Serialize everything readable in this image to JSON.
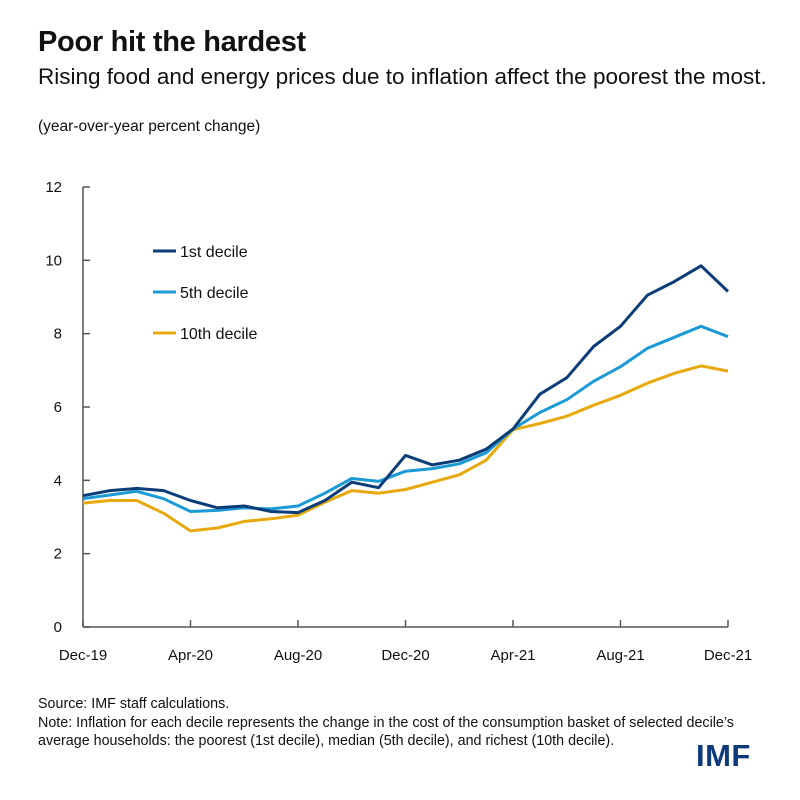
{
  "header": {
    "title": "Poor hit the hardest",
    "subtitle": "Rising food and energy prices due to inflation affect the poorest the most.",
    "unit": "(year-over-year percent change)"
  },
  "chart_data": {
    "type": "line",
    "title": "Poor hit the hardest",
    "ylabel": "(year-over-year percent change)",
    "ylim": [
      0,
      12
    ],
    "yticks": [
      "0",
      "2",
      "4",
      "6",
      "8",
      "10",
      "12"
    ],
    "x": [
      "Dec-19",
      "Jan-20",
      "Feb-20",
      "Mar-20",
      "Apr-20",
      "May-20",
      "Jun-20",
      "Jul-20",
      "Aug-20",
      "Sep-20",
      "Oct-20",
      "Nov-20",
      "Dec-20",
      "Jan-21",
      "Feb-21",
      "Mar-21",
      "Apr-21",
      "May-21",
      "Jun-21",
      "Jul-21",
      "Aug-21",
      "Sep-21",
      "Oct-21",
      "Nov-21",
      "Dec-21"
    ],
    "xticks": [
      "Dec-19",
      "Apr-20",
      "Aug-20",
      "Dec-20",
      "Apr-21",
      "Aug-21",
      "Dec-21"
    ],
    "grid": false,
    "legend_position": "top-left",
    "series": [
      {
        "name": "1st decile",
        "color": "#0b3d78",
        "values": [
          3.58,
          3.72,
          3.78,
          3.72,
          3.45,
          3.25,
          3.3,
          3.15,
          3.12,
          3.45,
          3.95,
          3.8,
          4.68,
          4.42,
          4.55,
          4.85,
          5.4,
          6.35,
          6.8,
          7.65,
          8.2,
          9.05,
          9.42,
          9.85,
          9.15
        ]
      },
      {
        "name": "5th decile",
        "color": "#1b9ad6",
        "values": [
          3.5,
          3.6,
          3.7,
          3.5,
          3.15,
          3.18,
          3.25,
          3.22,
          3.3,
          3.65,
          4.05,
          3.97,
          4.25,
          4.32,
          4.45,
          4.75,
          5.4,
          5.85,
          6.2,
          6.7,
          7.1,
          7.6,
          7.9,
          8.2,
          7.92
        ]
      },
      {
        "name": "10th decile",
        "color": "#e8a90e",
        "values": [
          3.38,
          3.45,
          3.45,
          3.1,
          2.62,
          2.7,
          2.88,
          2.95,
          3.05,
          3.4,
          3.72,
          3.65,
          3.75,
          3.95,
          4.15,
          4.55,
          5.38,
          5.55,
          5.75,
          6.05,
          6.32,
          6.65,
          6.92,
          7.12,
          6.98
        ]
      }
    ]
  },
  "footer": {
    "source": "Source: IMF staff calculations.",
    "note": "Note: Inflation for each decile represents the change in the cost of the consumption basket of selected decile’s average households: the poorest (1st decile), median (5th decile), and richest (10th decile)."
  },
  "logo": "IMF"
}
